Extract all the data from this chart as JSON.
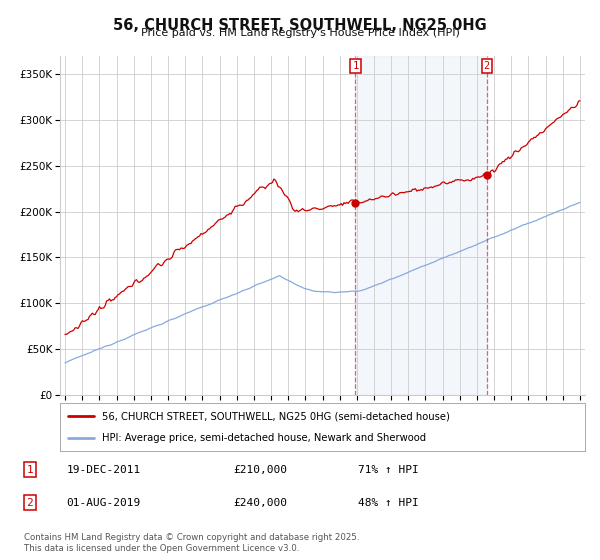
{
  "title": "56, CHURCH STREET, SOUTHWELL, NG25 0HG",
  "subtitle": "Price paid vs. HM Land Registry's House Price Index (HPI)",
  "background_color": "#ffffff",
  "plot_bg_color": "#ffffff",
  "shaded_region_color": "#ccddf5",
  "grid_color": "#cccccc",
  "red_line_color": "#cc0000",
  "blue_line_color": "#88aadd",
  "legend_label_red": "56, CHURCH STREET, SOUTHWELL, NG25 0HG (semi-detached house)",
  "legend_label_blue": "HPI: Average price, semi-detached house, Newark and Sherwood",
  "footer": "Contains HM Land Registry data © Crown copyright and database right 2025.\nThis data is licensed under the Open Government Licence v3.0.",
  "ylim": [
    0,
    370000
  ],
  "yticks": [
    0,
    50000,
    100000,
    150000,
    200000,
    250000,
    300000,
    350000
  ],
  "start_year": 1995,
  "end_year": 2025,
  "marker1_year": 2011.92,
  "marker1_value": 210000,
  "marker2_year": 2019.58,
  "marker2_value": 240000
}
